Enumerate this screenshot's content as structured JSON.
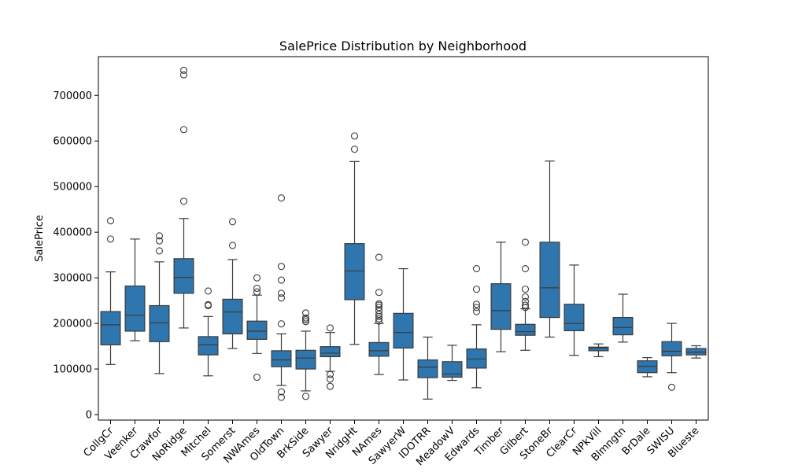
{
  "chart_data": {
    "type": "boxplot",
    "title": "SalePrice Distribution by Neighborhood",
    "xlabel": "",
    "ylabel": "SalePrice",
    "ylim": [
      -12000,
      785000
    ],
    "yticks": [
      0,
      100000,
      200000,
      300000,
      400000,
      500000,
      600000,
      700000
    ],
    "ytick_labels": [
      "0",
      "100000",
      "200000",
      "300000",
      "400000",
      "500000",
      "600000",
      "700000"
    ],
    "grid": false,
    "box_color": "#2f76ae",
    "categories": [
      "CollgCr",
      "Veenker",
      "Crawfor",
      "NoRidge",
      "Mitchel",
      "Somerst",
      "NWAmes",
      "OldTown",
      "BrkSide",
      "Sawyer",
      "NridgHt",
      "NAmes",
      "SawyerW",
      "IDOTRR",
      "MeadowV",
      "Edwards",
      "Timber",
      "Gilbert",
      "StoneBr",
      "ClearCr",
      "NPkVill",
      "Blmngtn",
      "BrDale",
      "SWISU",
      "Blueste"
    ],
    "boxes": [
      {
        "q1": 153000,
        "median": 197000,
        "q3": 226000,
        "whislo": 110000,
        "whishi": 313000,
        "fliers": [
          385000,
          425000
        ]
      },
      {
        "q1": 183000,
        "median": 218000,
        "q3": 282000,
        "whislo": 162000,
        "whishi": 385000,
        "fliers": []
      },
      {
        "q1": 160000,
        "median": 201000,
        "q3": 239000,
        "whislo": 90000,
        "whishi": 335000,
        "fliers": [
          359000,
          381000,
          392000
        ]
      },
      {
        "q1": 266000,
        "median": 301000,
        "q3": 342000,
        "whislo": 190000,
        "whishi": 430000,
        "fliers": [
          468000,
          625000,
          745000,
          755000
        ]
      },
      {
        "q1": 131000,
        "median": 153000,
        "q3": 171000,
        "whislo": 85000,
        "whishi": 215000,
        "fliers": [
          239000,
          241000,
          271000
        ]
      },
      {
        "q1": 177000,
        "median": 225000,
        "q3": 253000,
        "whislo": 145000,
        "whishi": 340000,
        "fliers": [
          371000,
          423000
        ]
      },
      {
        "q1": 165000,
        "median": 183000,
        "q3": 205000,
        "whislo": 134000,
        "whishi": 262000,
        "fliers": [
          82000,
          269000,
          277000,
          300000
        ]
      },
      {
        "q1": 105000,
        "median": 120000,
        "q3": 140000,
        "whislo": 64000,
        "whishi": 177000,
        "fliers": [
          38000,
          50000,
          199000,
          256000,
          266000,
          295000,
          325000,
          475000
        ]
      },
      {
        "q1": 100000,
        "median": 124000,
        "q3": 141000,
        "whislo": 52000,
        "whishi": 183000,
        "fliers": [
          40000,
          204000,
          208000,
          212000,
          223000
        ]
      },
      {
        "q1": 127000,
        "median": 135000,
        "q3": 149000,
        "whislo": 95000,
        "whishi": 180000,
        "fliers": [
          62000,
          78000,
          88000,
          190000
        ]
      },
      {
        "q1": 252000,
        "median": 315000,
        "q3": 375000,
        "whislo": 154000,
        "whishi": 555000,
        "fliers": [
          582000,
          611000
        ]
      },
      {
        "q1": 128000,
        "median": 140000,
        "q3": 158000,
        "whislo": 88000,
        "whishi": 200000,
        "fliers": [
          205000,
          210000,
          215000,
          220000,
          228000,
          235000,
          240000,
          243000,
          268000,
          345000
        ]
      },
      {
        "q1": 146000,
        "median": 180000,
        "q3": 222000,
        "whislo": 76000,
        "whishi": 320000,
        "fliers": []
      },
      {
        "q1": 81000,
        "median": 104000,
        "q3": 120000,
        "whislo": 34000,
        "whishi": 170000,
        "fliers": []
      },
      {
        "q1": 82000,
        "median": 89000,
        "q3": 116000,
        "whislo": 75000,
        "whishi": 152000,
        "fliers": []
      },
      {
        "q1": 102000,
        "median": 122000,
        "q3": 144000,
        "whislo": 59000,
        "whishi": 197000,
        "fliers": [
          226000,
          235000,
          242000,
          275000,
          320000
        ]
      },
      {
        "q1": 187000,
        "median": 228000,
        "q3": 287000,
        "whislo": 138000,
        "whishi": 378000,
        "fliers": []
      },
      {
        "q1": 174000,
        "median": 182000,
        "q3": 198000,
        "whislo": 141000,
        "whishi": 232000,
        "fliers": [
          235000,
          240000,
          248000,
          258000,
          275000,
          320000,
          378000
        ]
      },
      {
        "q1": 213000,
        "median": 278000,
        "q3": 378000,
        "whislo": 170000,
        "whishi": 556000,
        "fliers": []
      },
      {
        "q1": 184000,
        "median": 200000,
        "q3": 242000,
        "whislo": 130000,
        "whishi": 328000,
        "fliers": []
      },
      {
        "q1": 140000,
        "median": 146000,
        "q3": 148000,
        "whislo": 127000,
        "whishi": 155000,
        "fliers": []
      },
      {
        "q1": 175000,
        "median": 191000,
        "q3": 213000,
        "whislo": 159000,
        "whishi": 264000,
        "fliers": []
      },
      {
        "q1": 92000,
        "median": 106000,
        "q3": 118000,
        "whislo": 83000,
        "whishi": 125000,
        "fliers": []
      },
      {
        "q1": 129000,
        "median": 139000,
        "q3": 160000,
        "whislo": 92000,
        "whishi": 200000,
        "fliers": [
          60000
        ]
      },
      {
        "q1": 131000,
        "median": 137000,
        "q3": 145000,
        "whislo": 124000,
        "whishi": 151000,
        "fliers": []
      }
    ]
  }
}
